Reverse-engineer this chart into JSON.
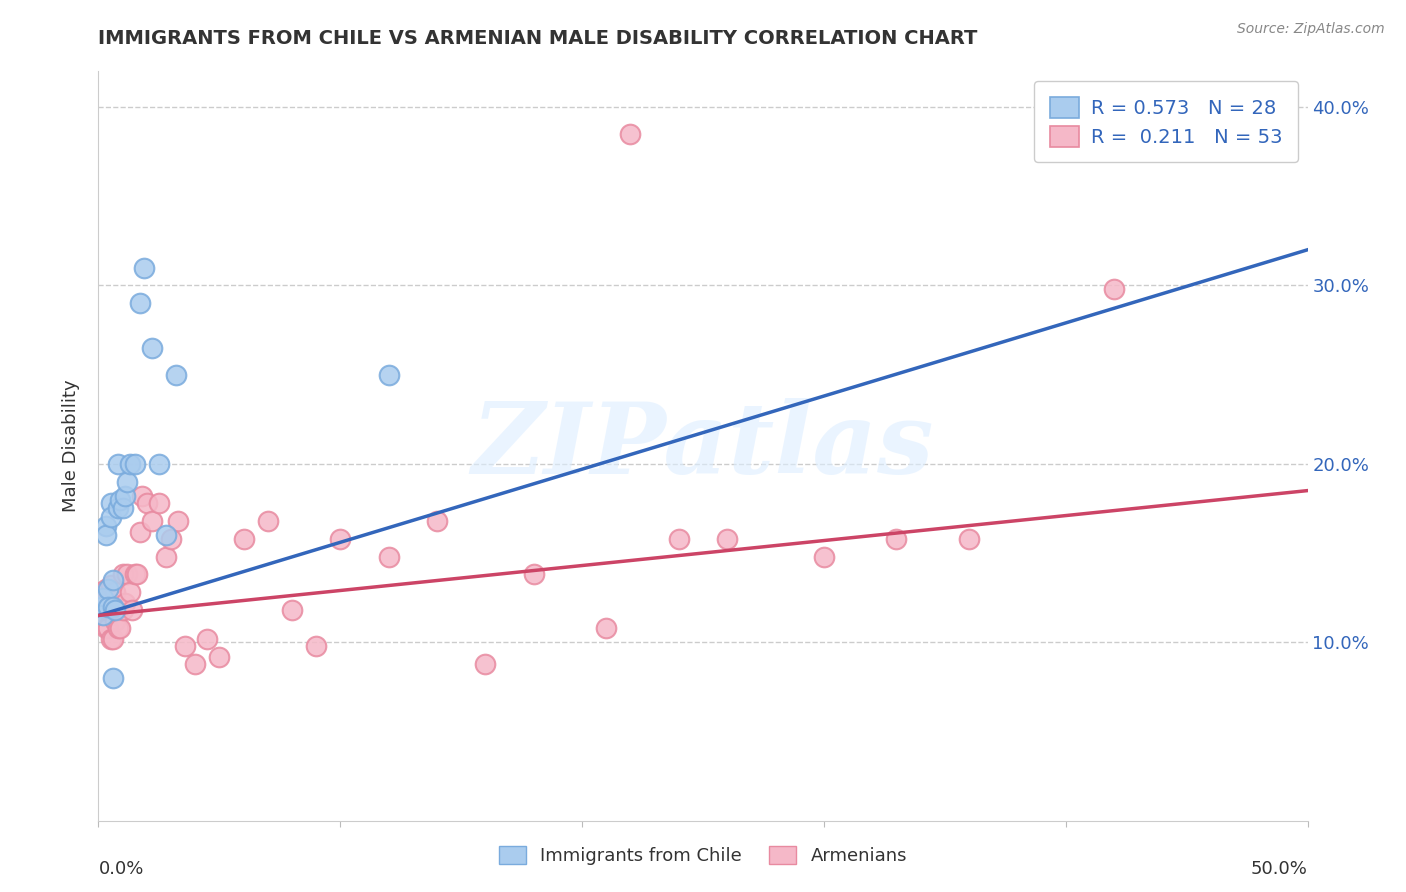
{
  "title": "IMMIGRANTS FROM CHILE VS ARMENIAN MALE DISABILITY CORRELATION CHART",
  "source": "Source: ZipAtlas.com",
  "ylabel": "Male Disability",
  "xlim": [
    0.0,
    0.5
  ],
  "ylim": [
    0.0,
    0.42
  ],
  "yticks": [
    0.1,
    0.2,
    0.3,
    0.4
  ],
  "ytick_labels": [
    "10.0%",
    "20.0%",
    "30.0%",
    "40.0%"
  ],
  "xtick_left": "0.0%",
  "xtick_right": "50.0%",
  "grid_color": "#cccccc",
  "background_color": "#ffffff",
  "chile_color": "#aaccee",
  "chile_edge_color": "#7aabdd",
  "armenian_color": "#f5b8c8",
  "armenian_edge_color": "#e88aa0",
  "chile_R": 0.573,
  "chile_N": 28,
  "armenian_R": 0.211,
  "armenian_N": 53,
  "chile_line_color": "#3366bb",
  "armenian_line_color": "#cc4466",
  "watermark": "ZIPatlas",
  "legend_label_chile": "Immigrants from Chile",
  "legend_label_armenian": "Armenians",
  "chile_x": [
    0.001,
    0.002,
    0.002,
    0.003,
    0.003,
    0.004,
    0.004,
    0.005,
    0.005,
    0.006,
    0.006,
    0.007,
    0.008,
    0.008,
    0.009,
    0.01,
    0.011,
    0.012,
    0.013,
    0.015,
    0.017,
    0.019,
    0.022,
    0.025,
    0.028,
    0.032,
    0.12,
    0.006
  ],
  "chile_y": [
    0.12,
    0.125,
    0.115,
    0.165,
    0.16,
    0.13,
    0.12,
    0.178,
    0.17,
    0.135,
    0.12,
    0.118,
    0.2,
    0.175,
    0.18,
    0.175,
    0.182,
    0.19,
    0.2,
    0.2,
    0.29,
    0.31,
    0.265,
    0.2,
    0.16,
    0.25,
    0.25,
    0.08
  ],
  "armenian_x": [
    0.001,
    0.002,
    0.002,
    0.003,
    0.003,
    0.004,
    0.004,
    0.005,
    0.005,
    0.006,
    0.006,
    0.007,
    0.007,
    0.008,
    0.008,
    0.009,
    0.01,
    0.01,
    0.011,
    0.012,
    0.013,
    0.014,
    0.015,
    0.016,
    0.017,
    0.018,
    0.02,
    0.022,
    0.025,
    0.028,
    0.03,
    0.033,
    0.036,
    0.04,
    0.045,
    0.05,
    0.06,
    0.07,
    0.08,
    0.09,
    0.1,
    0.12,
    0.14,
    0.16,
    0.18,
    0.21,
    0.24,
    0.26,
    0.3,
    0.33,
    0.22,
    0.36,
    0.42
  ],
  "armenian_y": [
    0.128,
    0.122,
    0.115,
    0.108,
    0.13,
    0.108,
    0.118,
    0.102,
    0.132,
    0.102,
    0.118,
    0.128,
    0.112,
    0.118,
    0.108,
    0.108,
    0.118,
    0.138,
    0.122,
    0.138,
    0.128,
    0.118,
    0.138,
    0.138,
    0.162,
    0.182,
    0.178,
    0.168,
    0.178,
    0.148,
    0.158,
    0.168,
    0.098,
    0.088,
    0.102,
    0.092,
    0.158,
    0.168,
    0.118,
    0.098,
    0.158,
    0.148,
    0.168,
    0.088,
    0.138,
    0.108,
    0.158,
    0.158,
    0.148,
    0.158,
    0.385,
    0.158,
    0.298
  ]
}
